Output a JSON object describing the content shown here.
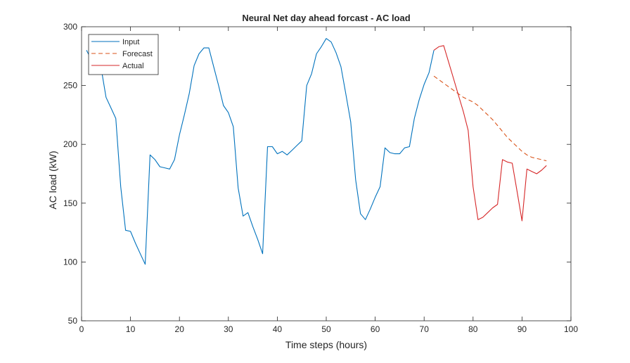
{
  "chart_data": {
    "type": "line",
    "title": "Neural Net day ahead forcast - AC load",
    "xlabel": "Time steps (hours)",
    "ylabel": "AC load (kW)",
    "xlim": [
      0,
      100
    ],
    "ylim": [
      50,
      300
    ],
    "xticks": [
      0,
      10,
      20,
      30,
      40,
      50,
      60,
      70,
      80,
      90,
      100
    ],
    "yticks": [
      50,
      100,
      150,
      200,
      250,
      300
    ],
    "grid": false,
    "legend_position": "top-left",
    "series": [
      {
        "name": "Input",
        "color": "#0072bd",
        "style": "solid",
        "x": [
          1,
          2,
          3,
          4,
          5,
          6,
          7,
          8,
          9,
          10,
          11,
          12,
          13,
          14,
          15,
          16,
          17,
          18,
          19,
          20,
          21,
          22,
          23,
          24,
          25,
          26,
          27,
          28,
          29,
          30,
          31,
          32,
          33,
          34,
          35,
          36,
          37,
          38,
          39,
          40,
          41,
          42,
          43,
          44,
          45,
          46,
          47,
          48,
          49,
          50,
          51,
          52,
          53,
          54,
          55,
          56,
          57,
          58,
          59,
          60,
          61,
          62,
          63,
          64,
          65,
          66,
          67,
          68,
          69,
          70,
          71,
          72
        ],
        "y": [
          280,
          272,
          268,
          265,
          240,
          231,
          222,
          164,
          127,
          126,
          116,
          107,
          98,
          191,
          187,
          181,
          180,
          179,
          187,
          208,
          225,
          243,
          267,
          277,
          282,
          282,
          266,
          250,
          233,
          227,
          215,
          163,
          139,
          142,
          130,
          119,
          107,
          198,
          198,
          192,
          194,
          191,
          195,
          199,
          203,
          250,
          260,
          277,
          283,
          290,
          287,
          278,
          266,
          243,
          219,
          170,
          141,
          136,
          145,
          155,
          164,
          197,
          193,
          192,
          192,
          197,
          198,
          222,
          238,
          251,
          261,
          280
        ]
      },
      {
        "name": "Forecast",
        "color": "#d95319",
        "style": "dashed",
        "x": [
          72,
          73,
          74,
          75,
          76,
          77,
          78,
          79,
          80,
          81,
          82,
          83,
          84,
          85,
          86,
          87,
          88,
          89,
          90,
          91,
          92,
          93,
          94,
          95
        ],
        "y": [
          258,
          255,
          252,
          249,
          246,
          243,
          240,
          238,
          236,
          233,
          229,
          225,
          221,
          216,
          211,
          206,
          202,
          198,
          194,
          191,
          189,
          188,
          187,
          186
        ]
      },
      {
        "name": "Actual",
        "color": "#d62728",
        "style": "solid",
        "x": [
          72,
          73,
          74,
          75,
          76,
          77,
          78,
          79,
          80,
          81,
          82,
          83,
          84,
          85,
          86,
          87,
          88,
          89,
          90,
          91,
          92,
          93,
          94,
          95
        ],
        "y": [
          280,
          283,
          284,
          270,
          256,
          242,
          228,
          212,
          164,
          136,
          138,
          142,
          146,
          149,
          187,
          185,
          184,
          160,
          135,
          179,
          177,
          175,
          178,
          182
        ]
      }
    ]
  }
}
